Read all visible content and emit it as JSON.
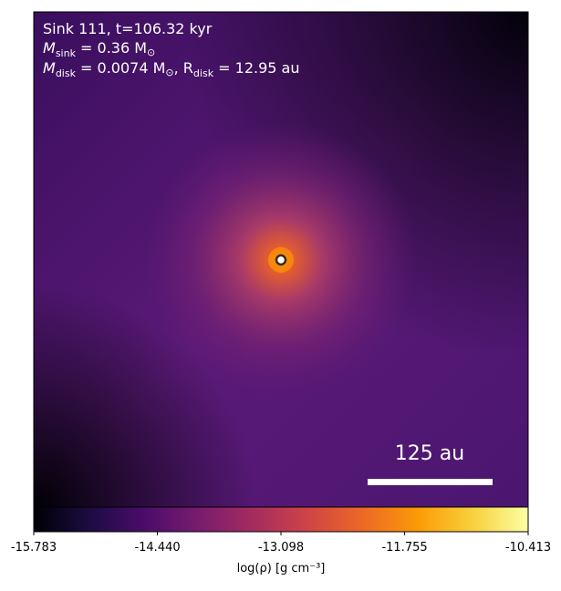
{
  "chart_data": {
    "type": "density-map",
    "annotations": [
      [
        "Sink 111, t=106.32 kyr"
      ],
      [
        "M",
        "sink",
        " = 0.36 M",
        "⊙"
      ],
      [
        "M",
        "disk",
        " = 0.0074 M",
        "⊙",
        ", R",
        "disk",
        " = 12.95 au"
      ]
    ],
    "scale_bar_label": "125 au",
    "colormap": "inferno",
    "colorbar_label": "log(ρ) [g cm⁻³]",
    "clim": [
      -15.783,
      -10.413
    ],
    "cticks": [
      -15.783,
      {
        "value": -14.44,
        "label": "-14.440"
      },
      -13.098,
      -11.755,
      -10.413
    ]
  }
}
